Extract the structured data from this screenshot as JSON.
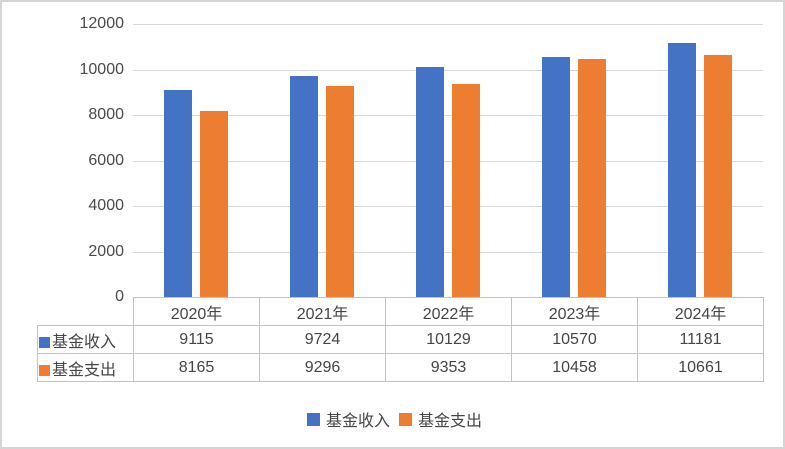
{
  "chart_data": {
    "type": "bar",
    "title": "",
    "xlabel": "",
    "ylabel": "",
    "categories": [
      "2020年",
      "2021年",
      "2022年",
      "2023年",
      "2024年"
    ],
    "series": [
      {
        "name": "基金收入",
        "color": "#4472C4",
        "values": [
          9115,
          9724,
          10129,
          10570,
          11181
        ]
      },
      {
        "name": "基金支出",
        "color": "#ED7D31",
        "values": [
          8165,
          9296,
          9353,
          10458,
          10661
        ]
      }
    ],
    "ylim": [
      0,
      12000
    ],
    "yticks": [
      0,
      2000,
      4000,
      6000,
      8000,
      10000,
      12000
    ],
    "grid": true,
    "gridline_color": "#d9d9d9",
    "legend_position": "bottom",
    "show_data_table": true
  }
}
